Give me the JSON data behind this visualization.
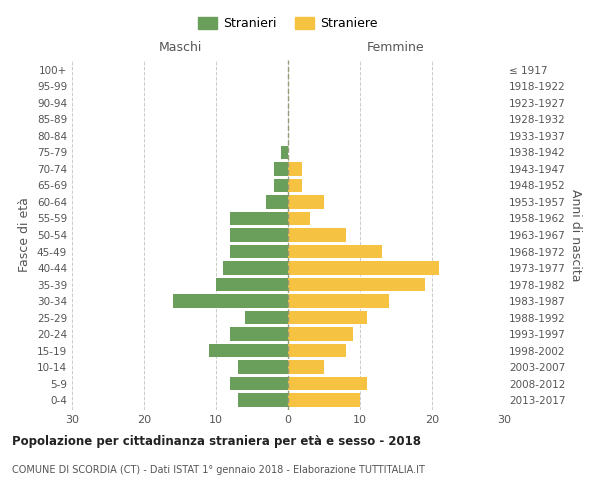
{
  "age_groups": [
    "0-4",
    "5-9",
    "10-14",
    "15-19",
    "20-24",
    "25-29",
    "30-34",
    "35-39",
    "40-44",
    "45-49",
    "50-54",
    "55-59",
    "60-64",
    "65-69",
    "70-74",
    "75-79",
    "80-84",
    "85-89",
    "90-94",
    "95-99",
    "100+"
  ],
  "birth_years": [
    "2013-2017",
    "2008-2012",
    "2003-2007",
    "1998-2002",
    "1993-1997",
    "1988-1992",
    "1983-1987",
    "1978-1982",
    "1973-1977",
    "1968-1972",
    "1963-1967",
    "1958-1962",
    "1953-1957",
    "1948-1952",
    "1943-1947",
    "1938-1942",
    "1933-1937",
    "1928-1932",
    "1923-1927",
    "1918-1922",
    "≤ 1917"
  ],
  "males": [
    7,
    8,
    7,
    11,
    8,
    6,
    16,
    10,
    9,
    8,
    8,
    8,
    3,
    2,
    2,
    1,
    0,
    0,
    0,
    0,
    0
  ],
  "females": [
    10,
    11,
    5,
    8,
    9,
    11,
    14,
    19,
    21,
    13,
    8,
    3,
    5,
    2,
    2,
    0,
    0,
    0,
    0,
    0,
    0
  ],
  "male_color": "#6a9f5b",
  "female_color": "#f5c242",
  "background_color": "#ffffff",
  "grid_color": "#cccccc",
  "title": "Popolazione per cittadinanza straniera per età e sesso - 2018",
  "subtitle": "COMUNE DI SCORDIA (CT) - Dati ISTAT 1° gennaio 2018 - Elaborazione TUTTITALIA.IT",
  "ylabel_left": "Fasce di età",
  "ylabel_right": "Anni di nascita",
  "xlabel_left": "Maschi",
  "xlabel_right": "Femmine",
  "legend_male": "Stranieri",
  "legend_female": "Straniere",
  "xlim": 30,
  "bar_height": 0.8
}
